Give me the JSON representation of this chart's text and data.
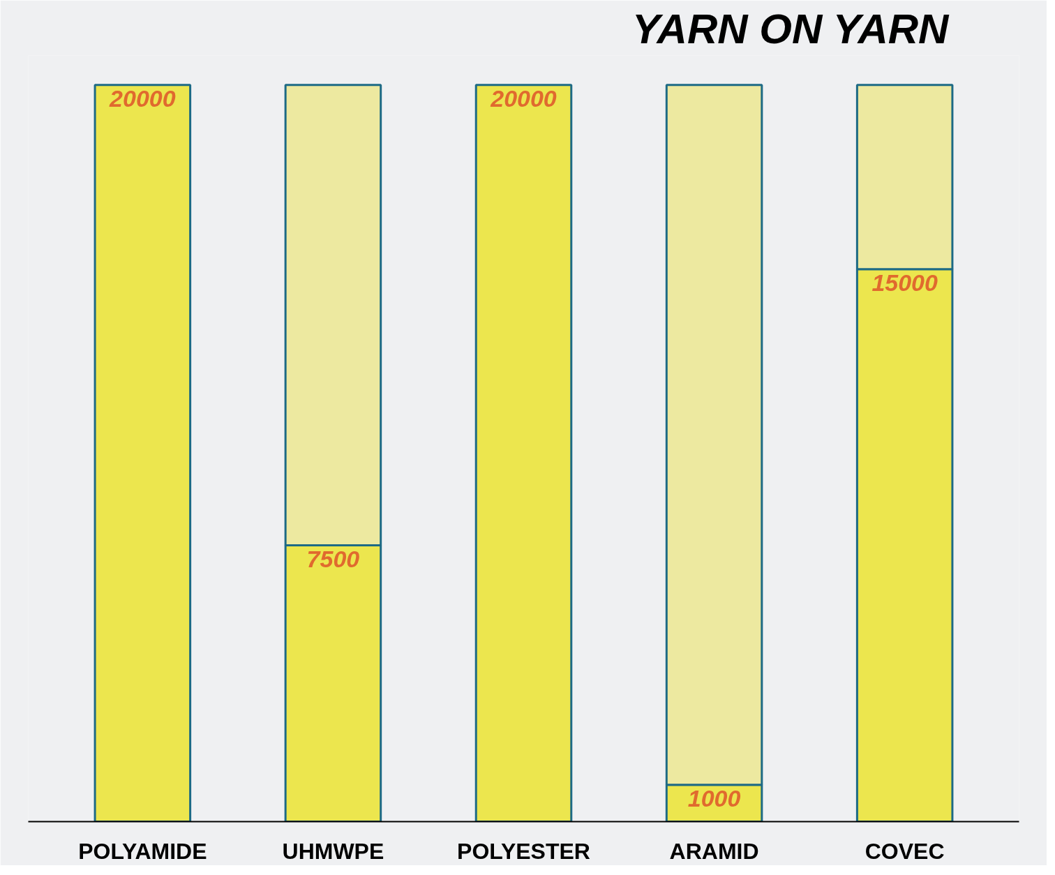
{
  "chart_data": {
    "type": "bar",
    "title": "YARN ON YARN",
    "categories": [
      "POLYAMIDE",
      "UHMWPE",
      "POLYESTER",
      "ARAMID",
      "COVEC"
    ],
    "stacked": true,
    "series": [
      {
        "color": "#ece64e",
        "values": [
          20000,
          7500,
          20000,
          1000,
          15000
        ],
        "value_labels": [
          "20000",
          "7500",
          "20000",
          "1000",
          "15000"
        ]
      },
      {
        "color": "#ede9a0",
        "values": [
          null,
          12500,
          null,
          19000,
          5000
        ]
      }
    ]
  }
}
